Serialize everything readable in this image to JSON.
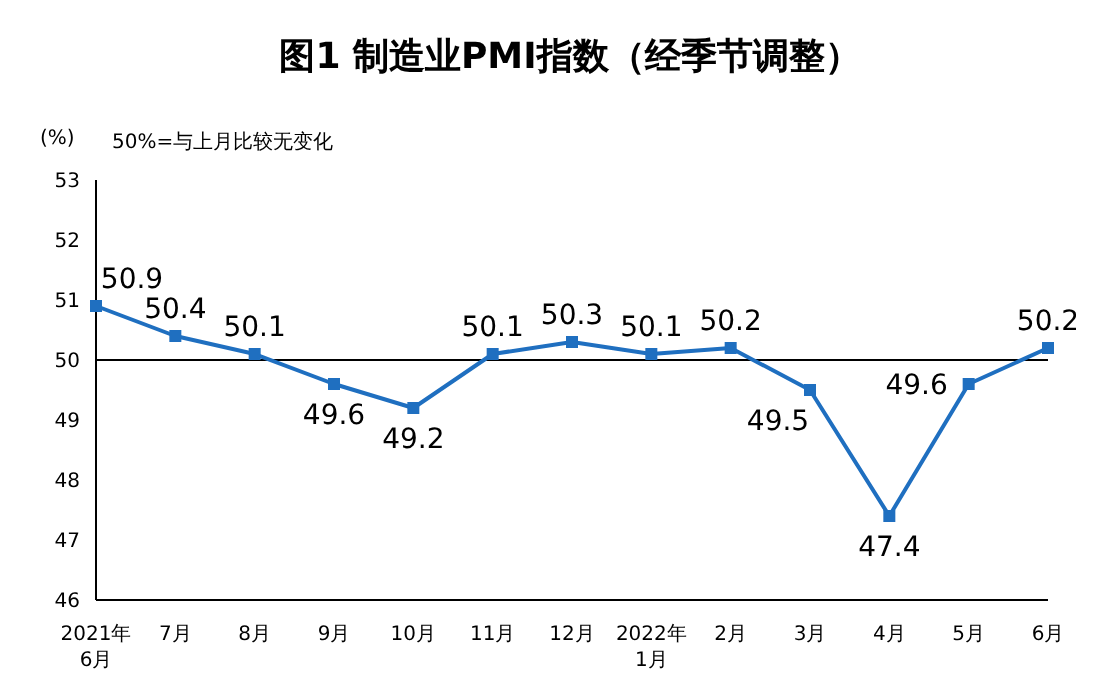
{
  "chart_data": {
    "type": "line",
    "title": "图1 制造业PMI指数（经季节调整）",
    "ylabel": "(%)",
    "annotations": [
      "50%=与上月比较无变化"
    ],
    "categories": [
      "2021年\n6月",
      "7月",
      "8月",
      "9月",
      "10月",
      "11月",
      "12月",
      "2022年\n1月",
      "2月",
      "3月",
      "4月",
      "5月",
      "6月"
    ],
    "series": [
      {
        "color": "#1f6fc0",
        "values": [
          50.9,
          50.4,
          50.1,
          49.6,
          49.2,
          50.1,
          50.3,
          50.1,
          50.2,
          49.5,
          47.4,
          49.6,
          50.2
        ]
      }
    ],
    "ylim": [
      46,
      53
    ],
    "yticks": [
      46,
      47,
      48,
      49,
      50,
      51,
      52,
      53
    ],
    "grid": false,
    "legend": false,
    "marker": "square",
    "line_style": "solid",
    "data_labels": true,
    "ref_lines": [
      {
        "axis": "y",
        "value": 50,
        "color": "#000000"
      }
    ]
  }
}
